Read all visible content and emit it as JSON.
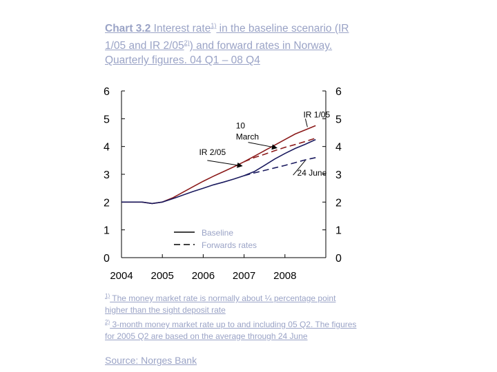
{
  "title": {
    "prefix": "Chart 3.2",
    "l1": " Interest rate",
    "sup1": "1)",
    "l2": " in the baseline scenario (IR 1/05 and IR 2/05",
    "sup2": "2)",
    "l3": ") and forward rates in Norway. Quarterly figures. 04 Q1 – 08 Q4"
  },
  "notes": {
    "n1_mark": "1)",
    "n1": " The money market rate is normally about ¼ percentage point higher than the sight deposit rate",
    "n2_mark": "2)",
    "n2": " 3-month money market rate up to and including 05 Q2. The figures for 2005 Q2 are based on the average through 24 June"
  },
  "source": {
    "label": "Source:",
    "value": " Norges Bank"
  },
  "colors": {
    "axis": "#000000",
    "ir105": "#8b1a1a",
    "ir205": "#1a1a5e",
    "text_muted": "#9aa3c6"
  },
  "chart_data": {
    "type": "line",
    "x_ticks": [
      "2004",
      "2005",
      "2006",
      "2007",
      "2008"
    ],
    "y_ticks_left": [
      0,
      1,
      2,
      3,
      4,
      5,
      6
    ],
    "y_ticks_right": [
      0,
      1,
      2,
      3,
      4,
      5,
      6
    ],
    "ylim": [
      0,
      6
    ],
    "xlim": [
      2004,
      2009
    ],
    "series": [
      {
        "name": "IR 1/05",
        "style": "solid",
        "color": "#8b1a1a",
        "x": [
          2004.0,
          2004.25,
          2004.5,
          2004.75,
          2005.0,
          2005.25,
          2005.5,
          2005.75,
          2006.0,
          2006.25,
          2006.5,
          2006.75,
          2007.0,
          2007.25,
          2007.5,
          2007.75,
          2008.0,
          2008.25,
          2008.5,
          2008.75
        ],
        "y": [
          2.0,
          2.0,
          2.0,
          1.95,
          2.0,
          2.15,
          2.35,
          2.55,
          2.75,
          2.93,
          3.1,
          3.27,
          3.45,
          3.65,
          3.85,
          4.05,
          4.25,
          4.45,
          4.6,
          4.75
        ]
      },
      {
        "name": "IR 2/05",
        "style": "solid",
        "color": "#1a1a5e",
        "x": [
          2004.0,
          2004.25,
          2004.5,
          2004.75,
          2005.0,
          2005.25,
          2005.5,
          2005.75,
          2006.0,
          2006.25,
          2006.5,
          2006.75,
          2007.0,
          2007.25,
          2007.5,
          2007.75,
          2008.0,
          2008.25,
          2008.5,
          2008.75
        ],
        "y": [
          2.0,
          2.0,
          2.0,
          1.95,
          2.0,
          2.12,
          2.25,
          2.38,
          2.5,
          2.62,
          2.72,
          2.83,
          2.95,
          3.1,
          3.32,
          3.55,
          3.75,
          3.93,
          4.08,
          4.25
        ]
      },
      {
        "name": "10 March",
        "style": "dashed",
        "color": "#8b1a1a",
        "x": [
          2007.0,
          2007.25,
          2007.5,
          2007.75,
          2008.0,
          2008.25,
          2008.5,
          2008.75
        ],
        "y": [
          3.45,
          3.6,
          3.72,
          3.85,
          3.97,
          4.07,
          4.18,
          4.3
        ]
      },
      {
        "name": "24 June",
        "style": "dashed",
        "color": "#1a1a5e",
        "x": [
          2007.0,
          2007.25,
          2007.5,
          2007.75,
          2008.0,
          2008.25,
          2008.5,
          2008.75
        ],
        "y": [
          2.95,
          3.05,
          3.14,
          3.23,
          3.32,
          3.42,
          3.52,
          3.6
        ]
      }
    ],
    "annotations": [
      {
        "text": "IR 1/05",
        "x": 2008.45,
        "y": 5.05
      },
      {
        "text": "10",
        "x": 2006.8,
        "y": 4.65
      },
      {
        "text": "March",
        "x": 2006.8,
        "y": 4.25
      },
      {
        "text": "IR 2/05",
        "x": 2005.9,
        "y": 3.7
      },
      {
        "text": "24 June",
        "x": 2008.3,
        "y": 2.95
      }
    ],
    "legend": {
      "placement": "bottom-left",
      "entries": [
        {
          "label": "Baseline",
          "style": "solid"
        },
        {
          "label": "Forwards rates",
          "style": "dashed"
        }
      ]
    },
    "grid": false
  }
}
